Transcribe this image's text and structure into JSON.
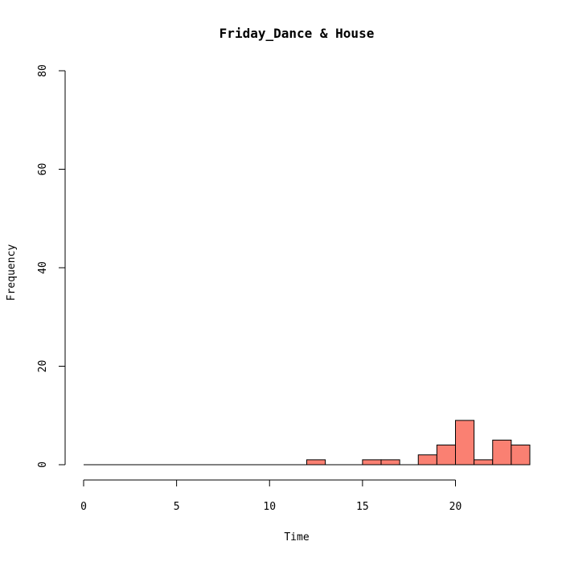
{
  "chart_data": {
    "type": "bar",
    "title": "Friday_Dance & House",
    "xlabel": "Time",
    "ylabel": "Frequency",
    "xlim": [
      0,
      24
    ],
    "ylim": [
      0,
      80
    ],
    "x_ticks": [
      0,
      5,
      10,
      15,
      20
    ],
    "y_ticks": [
      0,
      20,
      40,
      60,
      80
    ],
    "bin_width": 1,
    "bins": [
      {
        "start": 0,
        "end": 1,
        "count": 0
      },
      {
        "start": 1,
        "end": 2,
        "count": 0
      },
      {
        "start": 2,
        "end": 3,
        "count": 0
      },
      {
        "start": 3,
        "end": 4,
        "count": 0
      },
      {
        "start": 4,
        "end": 5,
        "count": 0
      },
      {
        "start": 5,
        "end": 6,
        "count": 0
      },
      {
        "start": 6,
        "end": 7,
        "count": 0
      },
      {
        "start": 7,
        "end": 8,
        "count": 0
      },
      {
        "start": 8,
        "end": 9,
        "count": 0
      },
      {
        "start": 9,
        "end": 10,
        "count": 0
      },
      {
        "start": 10,
        "end": 11,
        "count": 0
      },
      {
        "start": 11,
        "end": 12,
        "count": 0
      },
      {
        "start": 12,
        "end": 13,
        "count": 1
      },
      {
        "start": 13,
        "end": 14,
        "count": 0
      },
      {
        "start": 14,
        "end": 15,
        "count": 0
      },
      {
        "start": 15,
        "end": 16,
        "count": 1
      },
      {
        "start": 16,
        "end": 17,
        "count": 1
      },
      {
        "start": 17,
        "end": 18,
        "count": 0
      },
      {
        "start": 18,
        "end": 19,
        "count": 2
      },
      {
        "start": 19,
        "end": 20,
        "count": 4
      },
      {
        "start": 20,
        "end": 21,
        "count": 9
      },
      {
        "start": 21,
        "end": 22,
        "count": 1
      },
      {
        "start": 22,
        "end": 23,
        "count": 5
      },
      {
        "start": 23,
        "end": 24,
        "count": 4
      }
    ],
    "bar_color": "#fa8072",
    "grid": false,
    "legend": "none"
  }
}
